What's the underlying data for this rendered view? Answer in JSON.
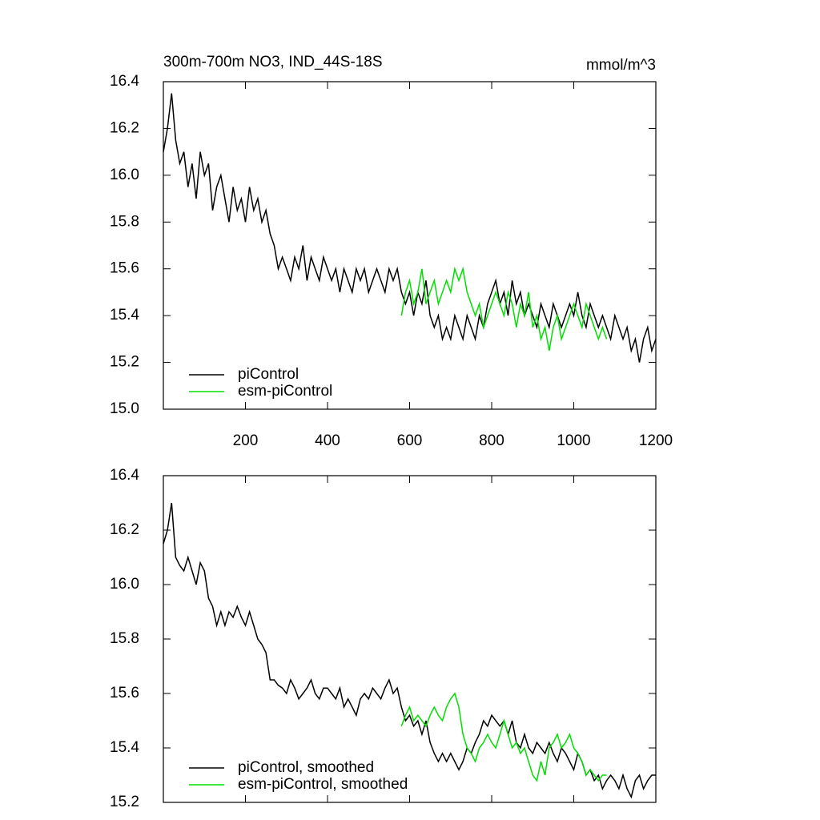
{
  "chart_data": [
    {
      "type": "line",
      "title": "300m-700m NO3, IND_44S-18S",
      "units": "mmol/m^3",
      "xlim": [
        0,
        1200
      ],
      "xticks": [
        200,
        400,
        600,
        800,
        1000,
        1200
      ],
      "show_xtick_labels": true,
      "ylim": [
        15.0,
        16.4
      ],
      "yticks": [
        {
          "value": 15.0,
          "label": "15.0"
        },
        15.2,
        15.4,
        15.6,
        15.8,
        {
          "value": 16.0,
          "label": "16.0"
        },
        16.2,
        16.4
      ],
      "legend": "lower left",
      "series": [
        {
          "name": "piControl",
          "color": "#000000",
          "x_start": 0,
          "x_step": 10,
          "values": [
            16.1,
            16.2,
            16.35,
            16.15,
            16.05,
            16.1,
            15.95,
            16.05,
            15.9,
            16.1,
            16.0,
            16.05,
            15.85,
            15.95,
            16.0,
            15.9,
            15.8,
            15.95,
            15.85,
            15.9,
            15.8,
            15.95,
            15.85,
            15.9,
            15.8,
            15.85,
            15.75,
            15.7,
            15.6,
            15.65,
            15.6,
            15.55,
            15.65,
            15.6,
            15.7,
            15.55,
            15.65,
            15.6,
            15.55,
            15.65,
            15.6,
            15.55,
            15.6,
            15.5,
            15.6,
            15.55,
            15.5,
            15.6,
            15.55,
            15.6,
            15.5,
            15.55,
            15.6,
            15.55,
            15.5,
            15.6,
            15.55,
            15.6,
            15.5,
            15.45,
            15.5,
            15.4,
            15.5,
            15.45,
            15.55,
            15.4,
            15.35,
            15.4,
            15.3,
            15.35,
            15.3,
            15.4,
            15.35,
            15.3,
            15.4,
            15.35,
            15.3,
            15.4,
            15.35,
            15.45,
            15.5,
            15.55,
            15.45,
            15.5,
            15.4,
            15.55,
            15.45,
            15.5,
            15.4,
            15.45,
            15.4,
            15.35,
            15.45,
            15.4,
            15.35,
            15.45,
            15.4,
            15.35,
            15.4,
            15.45,
            15.4,
            15.5,
            15.4,
            15.35,
            15.45,
            15.4,
            15.35,
            15.4,
            15.35,
            15.3,
            15.4,
            15.35,
            15.3,
            15.35,
            15.25,
            15.3,
            15.2,
            15.3,
            15.35,
            15.25,
            15.3
          ]
        },
        {
          "name": "esm-piControl",
          "color": "#00e000",
          "x_start": 580,
          "x_step": 10,
          "values": [
            15.4,
            15.5,
            15.55,
            15.45,
            15.5,
            15.6,
            15.45,
            15.5,
            15.55,
            15.45,
            15.5,
            15.55,
            15.5,
            15.6,
            15.55,
            15.6,
            15.5,
            15.45,
            15.4,
            15.45,
            15.35,
            15.4,
            15.45,
            15.5,
            15.45,
            15.4,
            15.5,
            15.45,
            15.35,
            15.45,
            15.4,
            15.5,
            15.35,
            15.4,
            15.3,
            15.35,
            15.25,
            15.35,
            15.4,
            15.3,
            15.35,
            15.4,
            15.45,
            15.4,
            15.35,
            15.45,
            15.4,
            15.35,
            15.3,
            15.35,
            15.3
          ]
        }
      ]
    },
    {
      "type": "line",
      "xlim": [
        0,
        1200
      ],
      "xticks": [
        200,
        400,
        600,
        800,
        1000,
        1200
      ],
      "show_xtick_labels": false,
      "ylim": [
        15.2,
        16.4
      ],
      "yticks": [
        15.2,
        15.4,
        15.6,
        15.8,
        {
          "value": 16.0,
          "label": "16.0"
        },
        16.2,
        16.4
      ],
      "legend": "lower left",
      "series": [
        {
          "name": "piControl, smoothed",
          "color": "#000000",
          "x_start": 0,
          "x_step": 10,
          "values": [
            16.15,
            16.2,
            16.3,
            16.1,
            16.07,
            16.05,
            16.1,
            16.05,
            16.0,
            16.08,
            16.05,
            15.95,
            15.92,
            15.85,
            15.9,
            15.85,
            15.9,
            15.88,
            15.92,
            15.88,
            15.85,
            15.9,
            15.85,
            15.8,
            15.78,
            15.75,
            15.65,
            15.65,
            15.63,
            15.62,
            15.6,
            15.65,
            15.62,
            15.58,
            15.6,
            15.62,
            15.65,
            15.6,
            15.58,
            15.62,
            15.62,
            15.6,
            15.58,
            15.62,
            15.55,
            15.58,
            15.55,
            15.52,
            15.58,
            15.6,
            15.58,
            15.62,
            15.6,
            15.58,
            15.62,
            15.65,
            15.6,
            15.62,
            15.55,
            15.5,
            15.52,
            15.48,
            15.5,
            15.45,
            15.5,
            15.42,
            15.38,
            15.35,
            15.38,
            15.35,
            15.38,
            15.35,
            15.32,
            15.35,
            15.4,
            15.38,
            15.42,
            15.45,
            15.5,
            15.48,
            15.52,
            15.5,
            15.48,
            15.5,
            15.45,
            15.5,
            15.42,
            15.4,
            15.45,
            15.4,
            15.38,
            15.42,
            15.4,
            15.38,
            15.42,
            15.38,
            15.35,
            15.4,
            15.38,
            15.35,
            15.32,
            15.38,
            15.35,
            15.3,
            15.32,
            15.28,
            15.3,
            15.25,
            15.28,
            15.3,
            15.28,
            15.25,
            15.3,
            15.25,
            15.22,
            15.28,
            15.3,
            15.25,
            15.28,
            15.3,
            15.3
          ]
        },
        {
          "name": "esm-piControl, smoothed",
          "color": "#00e000",
          "x_start": 580,
          "x_step": 10,
          "values": [
            15.48,
            15.52,
            15.55,
            15.5,
            15.52,
            15.5,
            15.48,
            15.52,
            15.55,
            15.52,
            15.5,
            15.55,
            15.58,
            15.6,
            15.55,
            15.45,
            15.4,
            15.38,
            15.35,
            15.4,
            15.42,
            15.45,
            15.42,
            15.4,
            15.45,
            15.5,
            15.45,
            15.4,
            15.42,
            15.38,
            15.4,
            15.35,
            15.3,
            15.28,
            15.35,
            15.3,
            15.4,
            15.42,
            15.45,
            15.4,
            15.42,
            15.45,
            15.4,
            15.38,
            15.35,
            15.3,
            15.32,
            15.3,
            15.28,
            15.3,
            15.3
          ]
        }
      ]
    }
  ]
}
